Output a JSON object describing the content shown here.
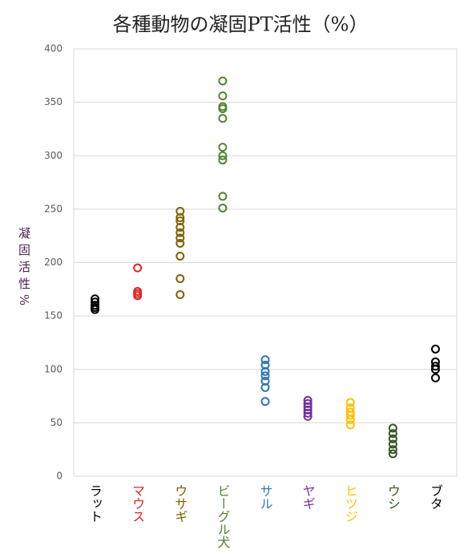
{
  "chart_data": {
    "type": "strip",
    "title": "各種動物の凝固PT活性（%）",
    "y_label": "凝固活性%",
    "ylim": [
      0,
      400
    ],
    "yticks": [
      0,
      50,
      100,
      150,
      200,
      250,
      300,
      350,
      400
    ],
    "grid": true,
    "series": [
      {
        "name": "ラット",
        "color": "#000000",
        "values": [
          166,
          163,
          160,
          158,
          156
        ]
      },
      {
        "name": "マウス",
        "color": "#e02424",
        "values": [
          195,
          173,
          171,
          169
        ]
      },
      {
        "name": "ウサギ",
        "color": "#7f6000",
        "values": [
          248,
          242,
          239,
          233,
          228,
          223,
          218,
          206,
          185,
          170
        ]
      },
      {
        "name": "ビーグル犬",
        "color": "#548235",
        "values": [
          370,
          356,
          346,
          344,
          335,
          308,
          300,
          296,
          262,
          251
        ]
      },
      {
        "name": "サル",
        "color": "#2e75b6",
        "values": [
          109,
          104,
          98,
          94,
          89,
          83,
          70
        ]
      },
      {
        "name": "ヤギ",
        "color": "#7030a0",
        "values": [
          71,
          68,
          65,
          62,
          59,
          56
        ]
      },
      {
        "name": "ヒツジ",
        "color": "#ffc000",
        "values": [
          69,
          64,
          60,
          57,
          53,
          48
        ]
      },
      {
        "name": "ウシ",
        "color": "#375623",
        "values": [
          45,
          40,
          35,
          30,
          25,
          21
        ]
      },
      {
        "name": "ブタ",
        "color": "#000000",
        "values": [
          119,
          107,
          103,
          100,
          92
        ]
      }
    ]
  }
}
